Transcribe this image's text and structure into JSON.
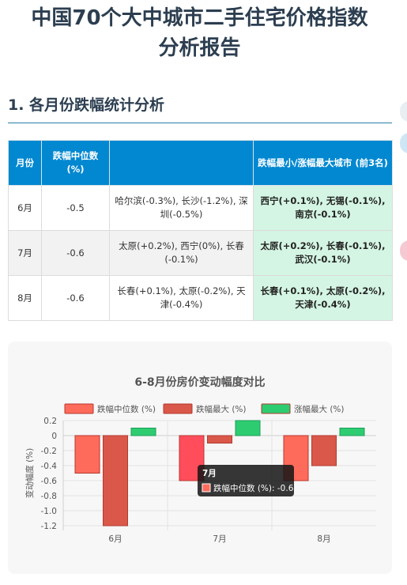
{
  "page": {
    "title_line1": "中国70个大中城市二手住宅价格指数",
    "title_line2": "分析报告"
  },
  "section1": {
    "heading": "1. 各月份跌幅统计分析"
  },
  "table": {
    "headers": [
      "月份",
      "跌幅中位数 (%)",
      "",
      "跌幅最小/涨幅最大城市 (前3名)"
    ],
    "rows": [
      {
        "month": "6月",
        "median": "-0.5",
        "cities": "哈尔滨(-0.3%), 长沙(-1.2%), 深圳(-0.5%)",
        "top": "西宁(+0.1%), 无锡(-0.1%), 南京(-0.1%)"
      },
      {
        "month": "7月",
        "median": "-0.6",
        "cities": "太原(+0.2%), 西宁(0%), 长春(-0.1%)",
        "top": "太原(+0.2%), 长春(-0.1%), 武汉(-0.1%)"
      },
      {
        "month": "8月",
        "median": "-0.6",
        "cities": "长春(+0.1%), 太原(-0.2%), 天津(-0.4%)",
        "top": "长春(+0.1%), 太原(-0.2%), 天津(-0.4%)"
      }
    ]
  },
  "chart_data": {
    "type": "bar",
    "title": "6-8月份房价变动幅度对比",
    "categories": [
      "6月",
      "7月",
      "8月"
    ],
    "series": [
      {
        "name": "跌幅中位数 (%)",
        "values": [
          -0.5,
          -0.6,
          -0.6
        ],
        "color": "#ff6b5b"
      },
      {
        "name": "跌幅最大 (%)",
        "values": [
          -1.2,
          -0.1,
          -0.4
        ],
        "color": "#d9584a"
      },
      {
        "name": "涨幅最大 (%)",
        "values": [
          0.1,
          0.2,
          0.1
        ],
        "color": "#2ecc71"
      }
    ],
    "ylabel": "变动幅度 (%)",
    "xlabel": "",
    "ylim": [
      -1.2,
      0.2
    ],
    "yticks": [
      "0.2",
      "0",
      "-0.2",
      "-0.4",
      "-0.6",
      "-0.8",
      "-1.0",
      "-1.2"
    ],
    "grid": true,
    "legend": "top",
    "tooltip": {
      "title": "7月",
      "text": "跌幅中位数 (%): -0.6"
    }
  },
  "colors": {
    "accent": "#0288d1",
    "highlight": "#d4f5e3",
    "rule": "#2a7fa8"
  }
}
